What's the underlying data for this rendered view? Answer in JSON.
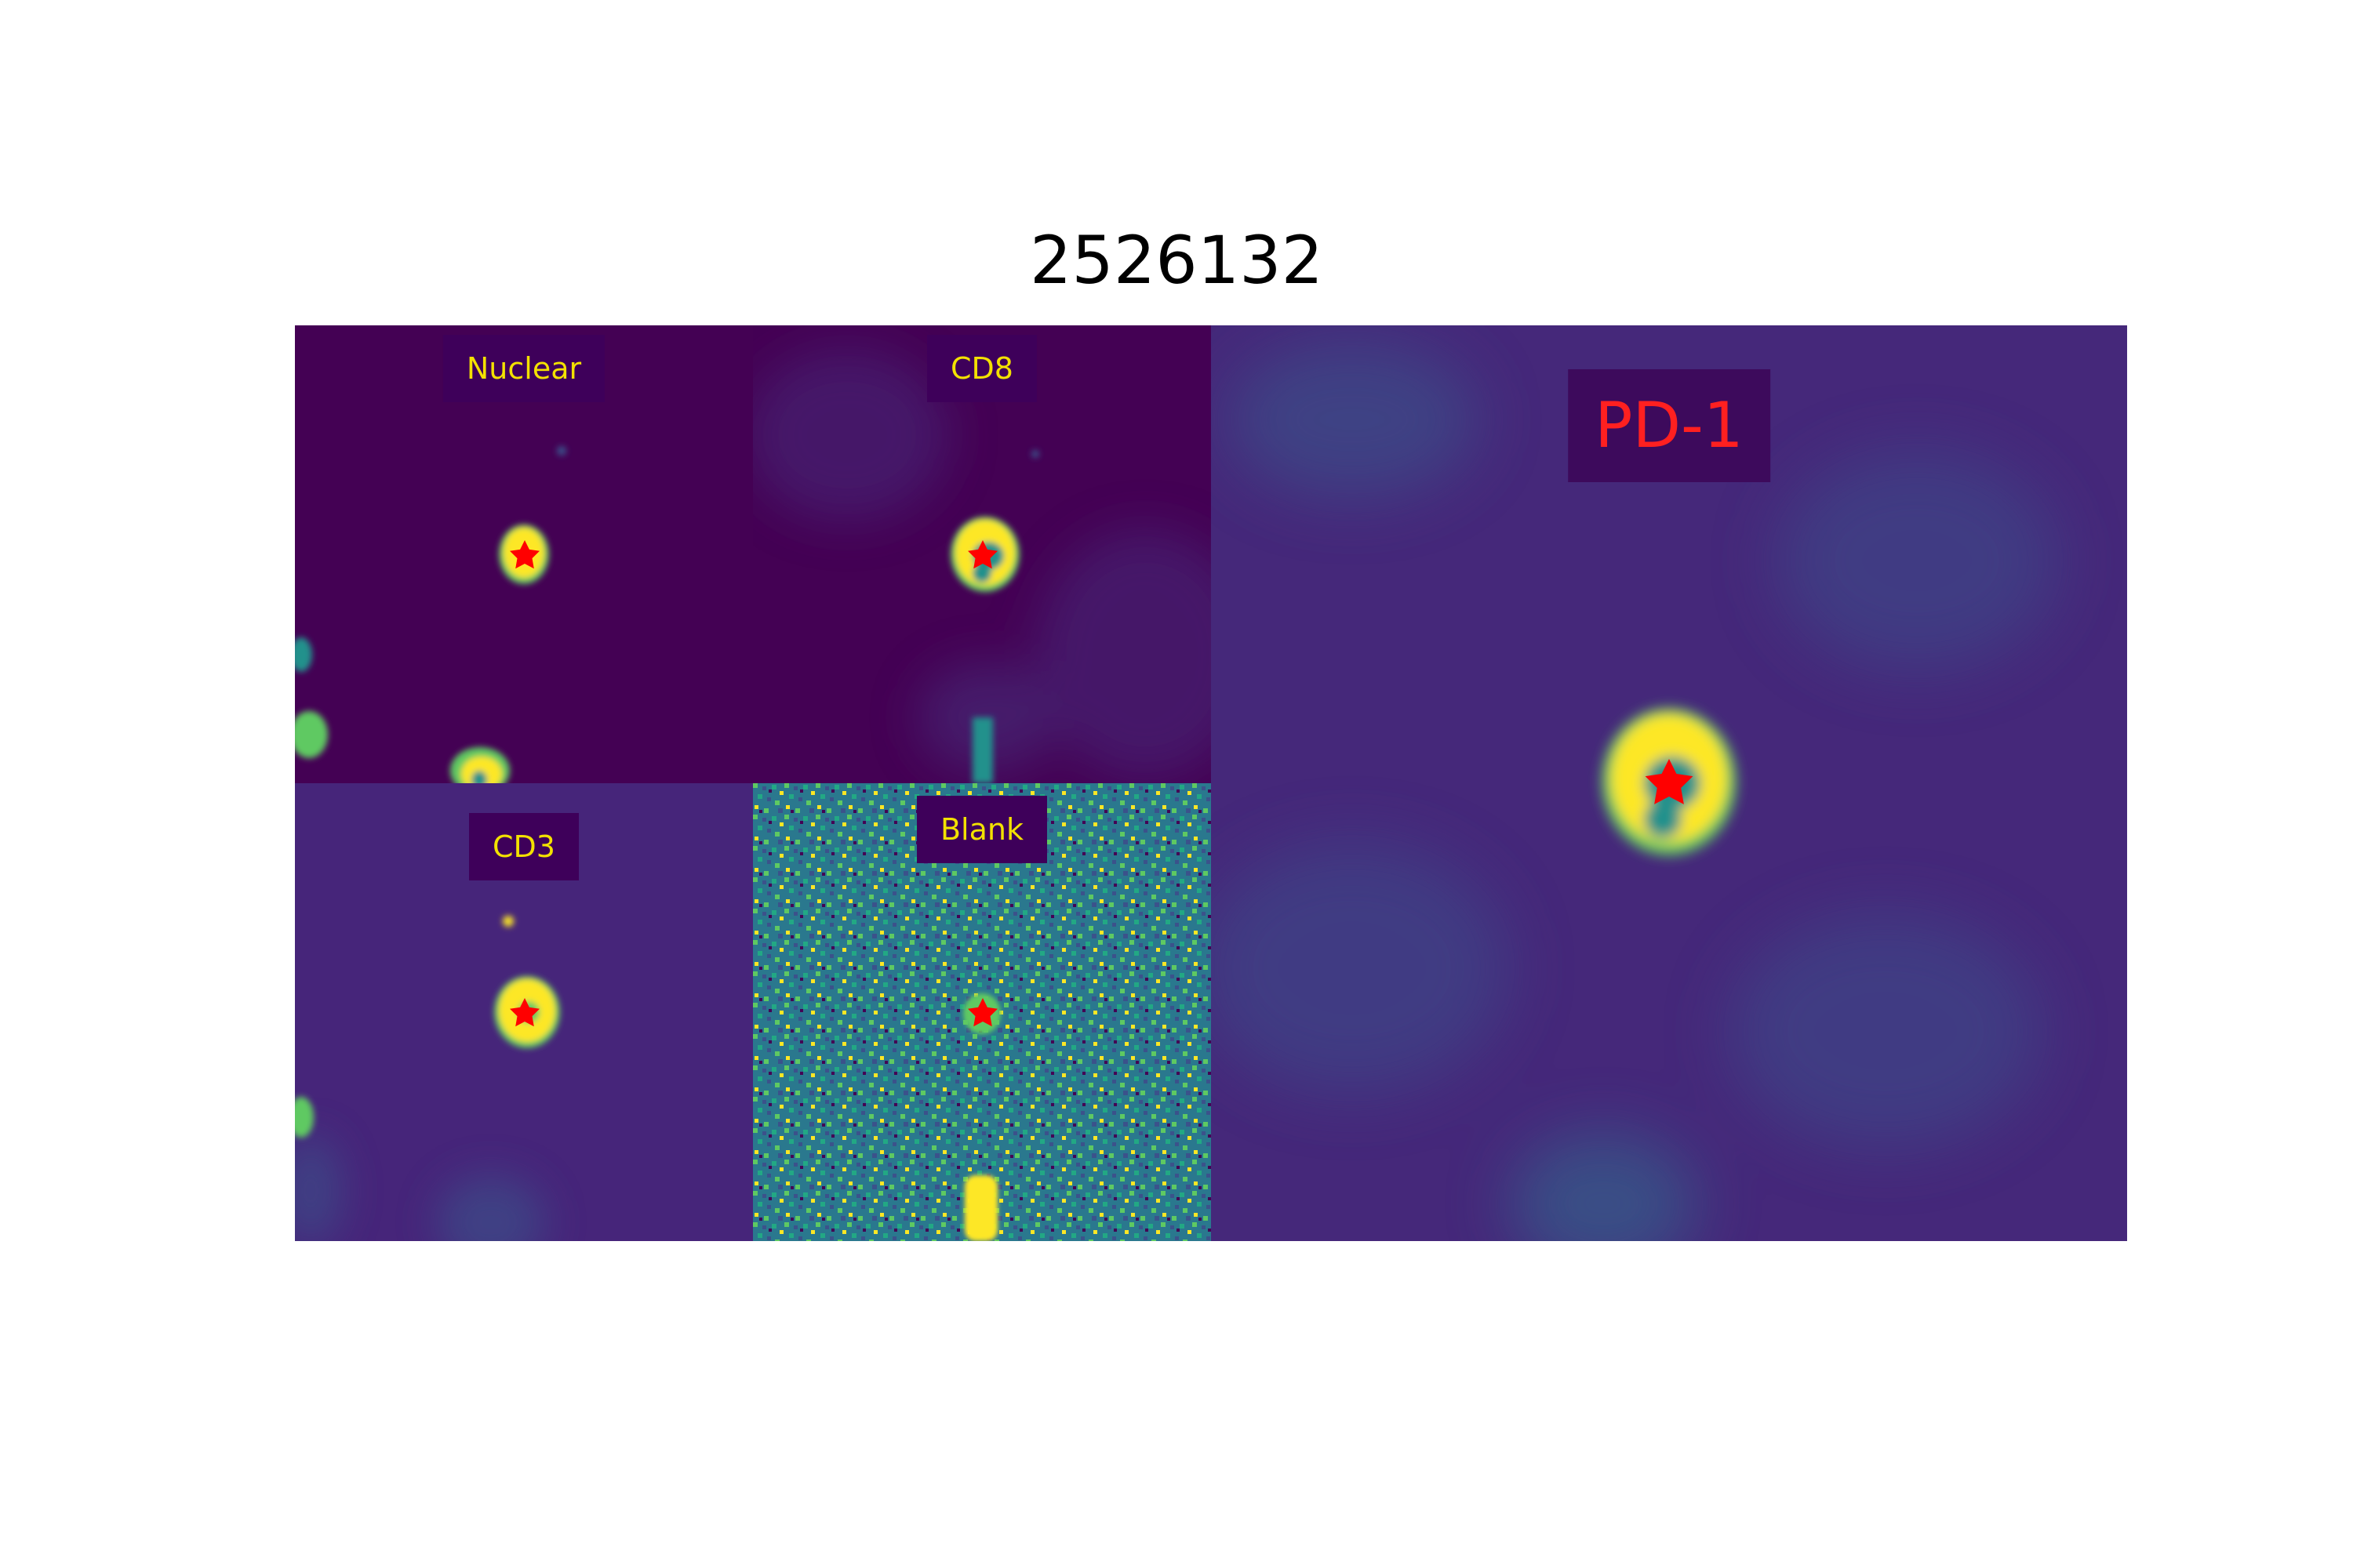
{
  "figure": {
    "title": "2526132",
    "panels": [
      {
        "id": "nuclear",
        "label": "Nuclear"
      },
      {
        "id": "cd8",
        "label": "CD8"
      },
      {
        "id": "cd3",
        "label": "CD3"
      },
      {
        "id": "blank",
        "label": "Blank"
      },
      {
        "id": "pd1",
        "label": "PD-1"
      }
    ],
    "colormap": {
      "low": "#440154",
      "mid_low": "#3b528b",
      "mid": "#21918c",
      "mid_high": "#5ec962",
      "high": "#fde725"
    },
    "marker": {
      "shape": "star",
      "color": "#ff0000"
    },
    "label_text_color": "#f3e100",
    "large_label_text_color": "#ff2020"
  }
}
